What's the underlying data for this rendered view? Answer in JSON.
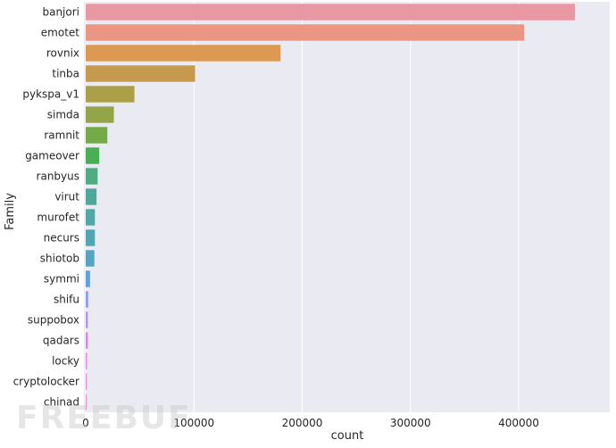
{
  "chart_data": {
    "type": "bar",
    "orientation": "horizontal",
    "categories": [
      "banjori",
      "emotet",
      "rovnix",
      "tinba",
      "pykspa_v1",
      "simda",
      "ramnit",
      "gameover",
      "ranbyus",
      "virut",
      "murofet",
      "necurs",
      "shiotob",
      "symmi",
      "shifu",
      "suppobox",
      "qadars",
      "locky",
      "cryptolocker",
      "chinad"
    ],
    "values": [
      452000,
      405000,
      180000,
      101000,
      45000,
      26000,
      20000,
      12500,
      11000,
      10000,
      8500,
      8500,
      8000,
      4000,
      2300,
      2000,
      2000,
      1200,
      1000,
      800
    ],
    "colors": [
      "#ea96a3",
      "#eb9683",
      "#dd9852",
      "#c59a4d",
      "#ab9f48",
      "#93a548",
      "#74ab48",
      "#4aae54",
      "#4eab84",
      "#4fa99b",
      "#50a8a7",
      "#51a6b3",
      "#55a4c4",
      "#5ea0e1",
      "#8f9cec",
      "#b394ec",
      "#d08aec",
      "#e883e6",
      "#ea8bd0",
      "#ea90bd"
    ],
    "xlabel": "count",
    "ylabel": "Family",
    "xticks": [
      0,
      100000,
      200000,
      300000,
      400000
    ],
    "xlim": [
      0,
      475000
    ],
    "grid": true,
    "background": "#eaeaf2"
  },
  "watermark": {
    "text": "FREEBUF"
  }
}
